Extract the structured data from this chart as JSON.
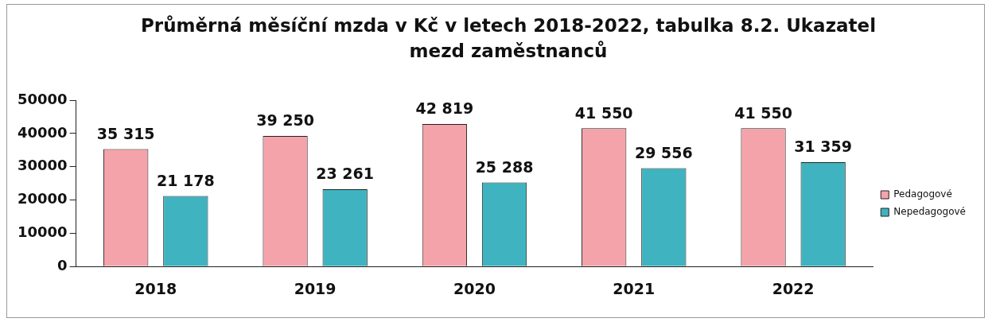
{
  "chart_data": {
    "type": "bar",
    "title": "Průměrná měsíční mzda v Kč v letech 2018-2022, tabulka 8.2. Ukazatel mezd zaměstnanců",
    "categories": [
      "2018",
      "2019",
      "2020",
      "2021",
      "2022"
    ],
    "series": [
      {
        "name": "Pedagogové",
        "color": "#f4a3aa",
        "values": [
          35315,
          39250,
          42819,
          41550,
          41550
        ],
        "value_labels": [
          "35 315",
          "39 250",
          "42 819",
          "41 550",
          "41 550"
        ]
      },
      {
        "name": "Nepedagogové",
        "color": "#3fb4c0",
        "values": [
          21178,
          23261,
          25288,
          29556,
          31359
        ],
        "value_labels": [
          "21 178",
          "23 261",
          "25 288",
          "29 556",
          "31 359"
        ]
      }
    ],
    "ylim": [
      0,
      50000
    ],
    "yticks": [
      0,
      10000,
      20000,
      30000,
      40000,
      50000
    ],
    "grid": false,
    "legend": "right"
  }
}
